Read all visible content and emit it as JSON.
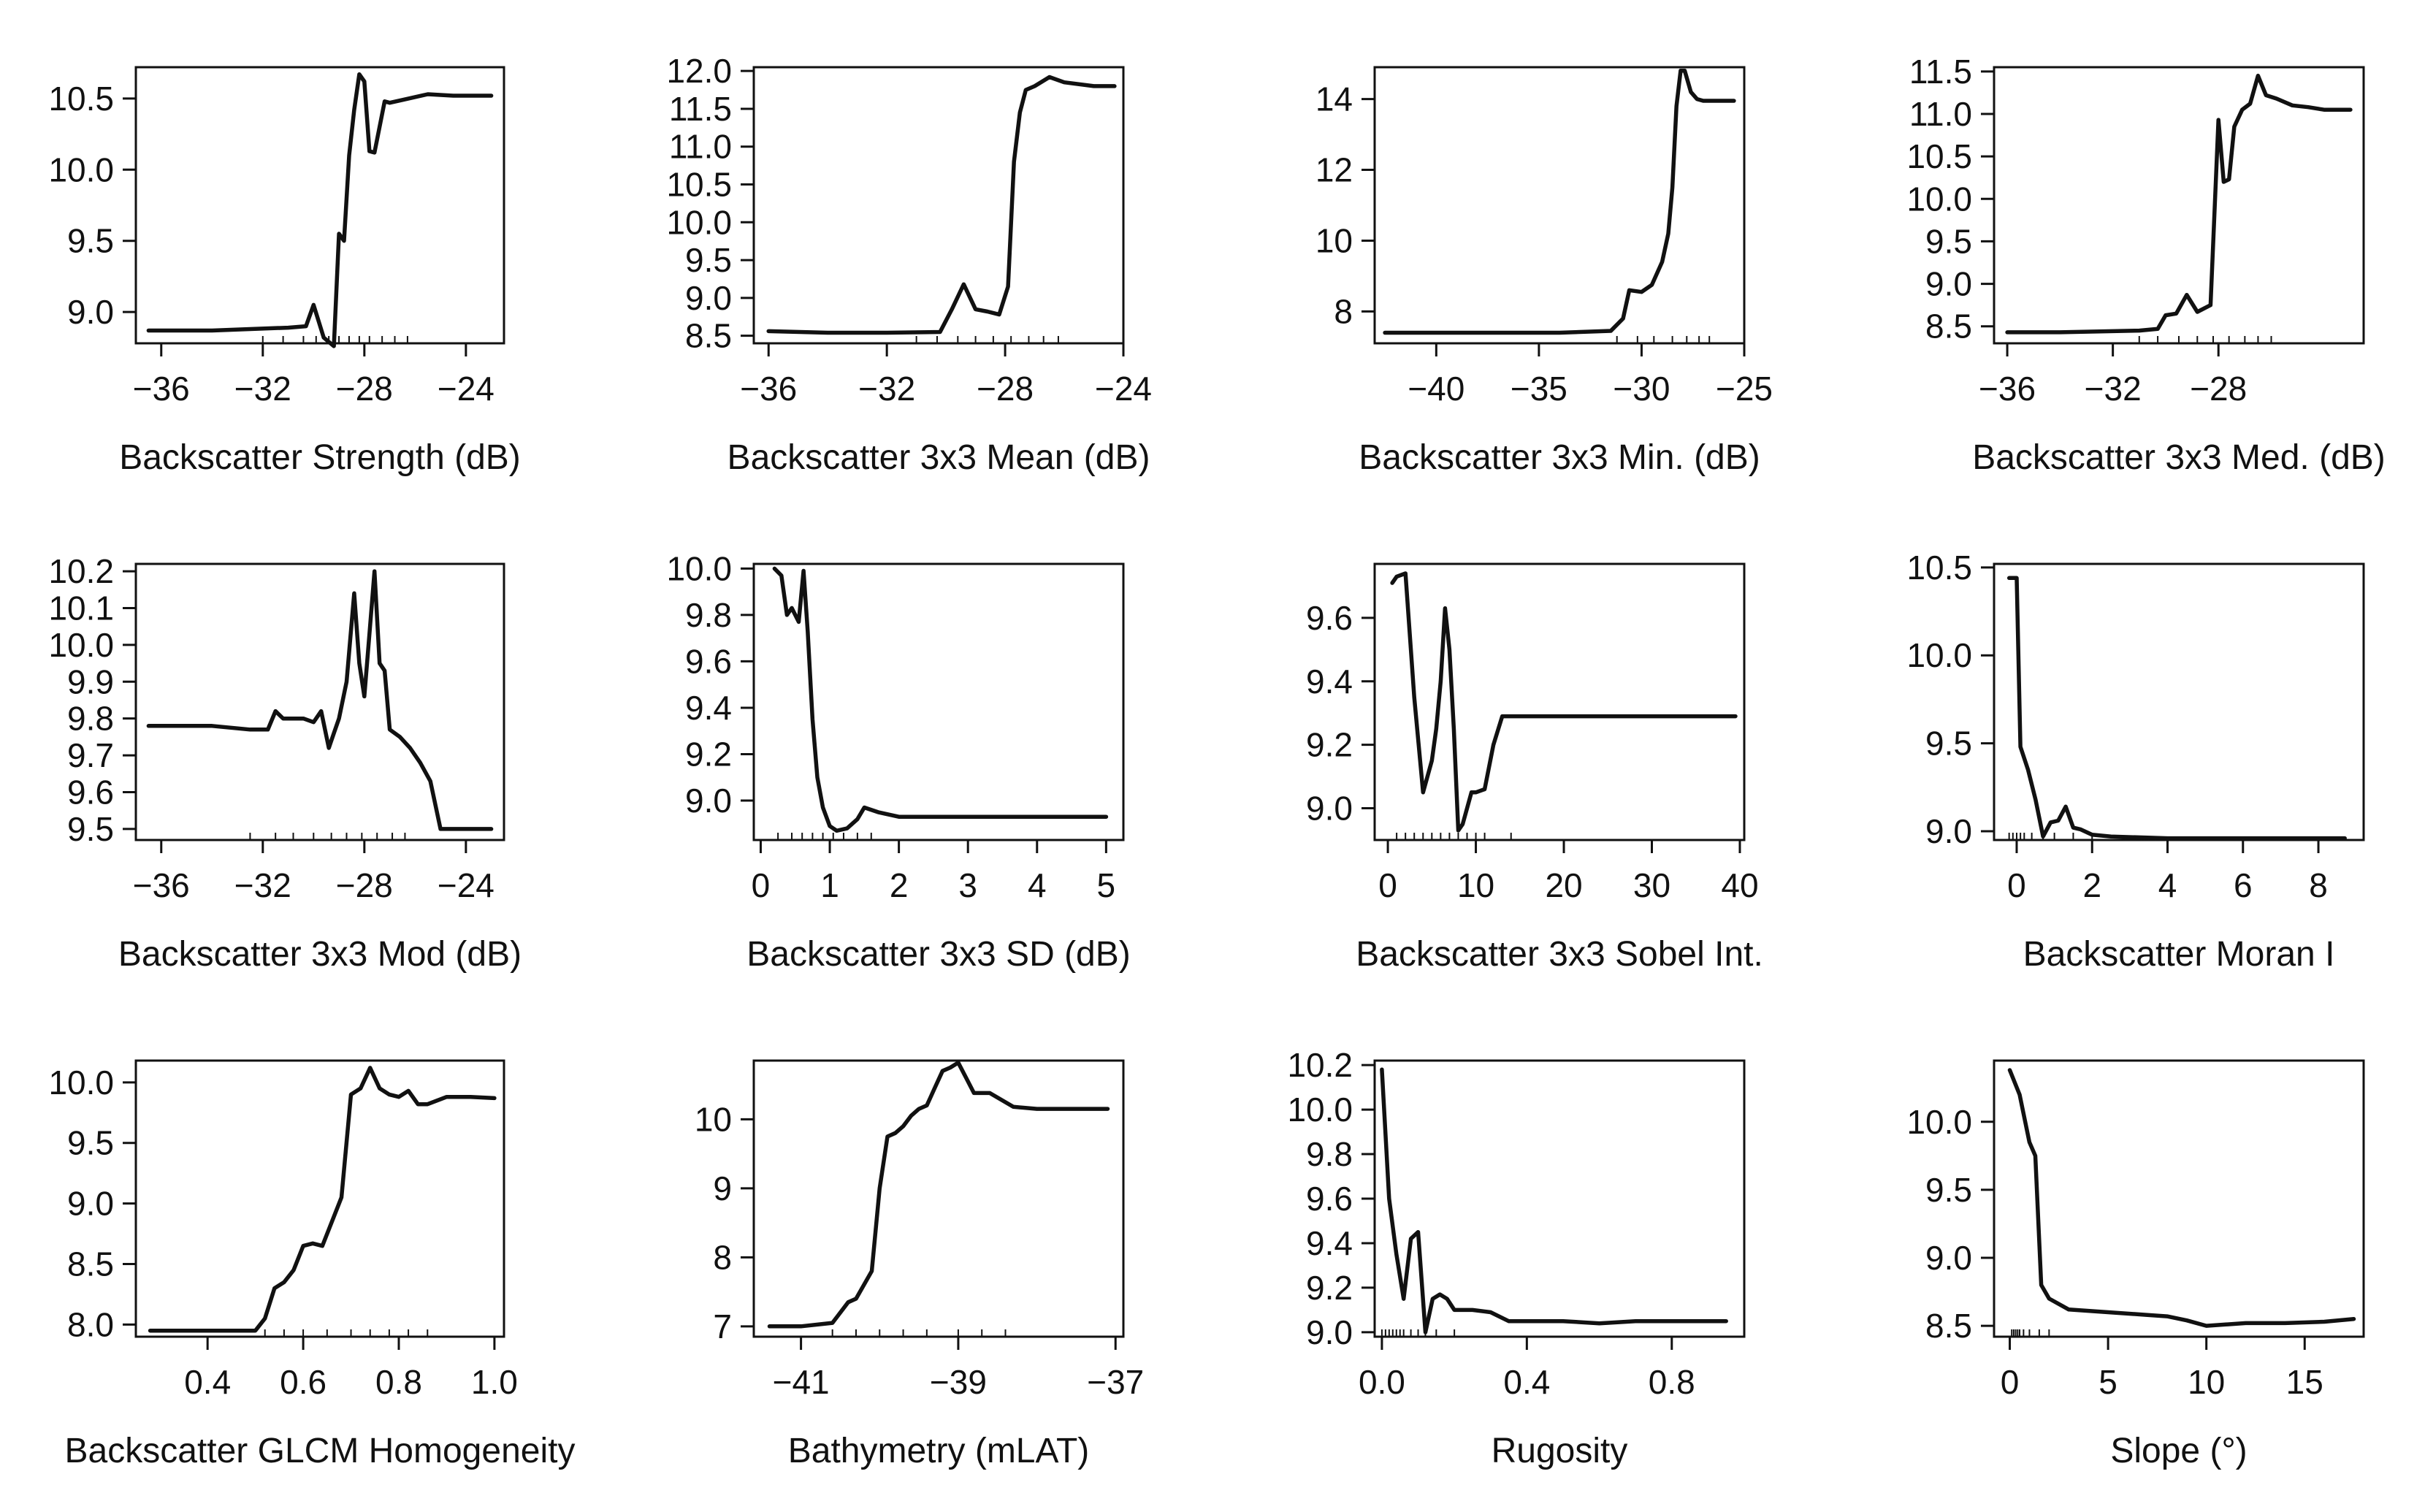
{
  "chart_data": [
    {
      "type": "line",
      "xlabel": "Backscatter Strength (dB)",
      "ylabel": "",
      "xlim": [
        -37,
        -22.5
      ],
      "ylim": [
        8.78,
        10.72
      ],
      "xticks": [
        -36,
        -32,
        -28,
        -24
      ],
      "yticks": [
        9.0,
        9.5,
        10.0,
        10.5
      ],
      "x": [
        -36.5,
        -34,
        -32.5,
        -31,
        -30.3,
        -30.0,
        -29.6,
        -29.2,
        -29.0,
        -28.8,
        -28.6,
        -28.4,
        -28.2,
        -28.0,
        -27.8,
        -27.6,
        -27.2,
        -27.0,
        -26.5,
        -25.5,
        -24.5,
        -23.0
      ],
      "y": [
        8.87,
        8.87,
        8.88,
        8.89,
        8.9,
        9.05,
        8.82,
        8.76,
        9.55,
        9.5,
        10.1,
        10.42,
        10.67,
        10.62,
        10.13,
        10.12,
        10.48,
        10.47,
        10.49,
        10.53,
        10.52,
        10.52
      ],
      "rug": [
        -32,
        -31.2,
        -30.4,
        -29.9,
        -29.4,
        -29,
        -28.6,
        -28.2,
        -27.8,
        -27.3,
        -26.8,
        -26.3
      ]
    },
    {
      "type": "line",
      "xlabel": "Backscatter 3x3 Mean (dB)",
      "ylabel": "",
      "xlim": [
        -36.5,
        -24
      ],
      "ylim": [
        8.4,
        12.05
      ],
      "xticks": [
        -36,
        -32,
        -28,
        -24
      ],
      "yticks": [
        8.5,
        9.0,
        9.5,
        10.0,
        10.5,
        11.0,
        11.5,
        12.0
      ],
      "x": [
        -36,
        -34,
        -32,
        -30.2,
        -29.8,
        -29.4,
        -29.0,
        -28.6,
        -28.2,
        -27.9,
        -27.7,
        -27.5,
        -27.3,
        -27.0,
        -26.5,
        -26.0,
        -25.0,
        -24.3
      ],
      "y": [
        8.56,
        8.54,
        8.54,
        8.55,
        8.85,
        9.18,
        8.85,
        8.82,
        8.78,
        9.15,
        10.8,
        11.45,
        11.75,
        11.8,
        11.92,
        11.85,
        11.8,
        11.8
      ],
      "rug": [
        -31,
        -30.3,
        -29.6,
        -29,
        -28.4,
        -27.8,
        -27.2,
        -26.7,
        -26.2
      ]
    },
    {
      "type": "line",
      "xlabel": "Backscatter 3x3 Min. (dB)",
      "ylabel": "",
      "xlim": [
        -43,
        -25
      ],
      "ylim": [
        7.1,
        14.9
      ],
      "xticks": [
        -40,
        -35,
        -30,
        -25
      ],
      "yticks": [
        8,
        10,
        12,
        14
      ],
      "x": [
        -42.5,
        -38,
        -34,
        -31.5,
        -30.9,
        -30.6,
        -30.0,
        -29.5,
        -29.0,
        -28.7,
        -28.5,
        -28.3,
        -28.1,
        -27.9,
        -27.6,
        -27.3,
        -27.0,
        -26.5,
        -25.5
      ],
      "y": [
        7.4,
        7.4,
        7.4,
        7.45,
        7.8,
        8.6,
        8.55,
        8.75,
        9.4,
        10.2,
        11.5,
        13.8,
        14.8,
        14.8,
        14.2,
        14.0,
        13.95,
        13.95,
        13.95
      ],
      "rug": [
        -31.2,
        -30.2,
        -29.4,
        -28.5,
        -27.8,
        -27.2,
        -26.7
      ]
    },
    {
      "type": "line",
      "xlabel": "Backscatter 3x3 Med. (dB)",
      "ylabel": "",
      "xlim": [
        -36.5,
        -22.5
      ],
      "ylim": [
        8.3,
        11.55
      ],
      "xticks": [
        -36,
        -32,
        -28
      ],
      "yticks": [
        8.5,
        9.0,
        9.5,
        10.0,
        10.5,
        11.0,
        11.5
      ],
      "x": [
        -36,
        -34,
        -32.5,
        -31,
        -30.3,
        -30.0,
        -29.6,
        -29.2,
        -28.8,
        -28.3,
        -28.0,
        -27.8,
        -27.6,
        -27.4,
        -27.1,
        -26.8,
        -26.5,
        -26.2,
        -25.8,
        -25.2,
        -24.6,
        -24.0,
        -23.5,
        -23.0
      ],
      "y": [
        8.43,
        8.43,
        8.44,
        8.45,
        8.47,
        8.63,
        8.65,
        8.87,
        8.67,
        8.75,
        10.93,
        10.2,
        10.23,
        10.85,
        11.05,
        11.12,
        11.45,
        11.22,
        11.18,
        11.1,
        11.08,
        11.05,
        11.05,
        11.05
      ],
      "rug": [
        -31,
        -30.3,
        -29.5,
        -28.8,
        -28.2,
        -27.6,
        -27,
        -26.5,
        -26
      ]
    },
    {
      "type": "line",
      "xlabel": "Backscatter 3x3 Mod (dB)",
      "ylabel": "",
      "xlim": [
        -37,
        -22.5
      ],
      "ylim": [
        9.47,
        10.22
      ],
      "xticks": [
        -36,
        -32,
        -28,
        -24
      ],
      "yticks": [
        9.5,
        9.6,
        9.7,
        9.8,
        9.9,
        10.0,
        10.1,
        10.2
      ],
      "x": [
        -36.5,
        -34,
        -32.5,
        -31.8,
        -31.5,
        -31.2,
        -30.8,
        -30.4,
        -30.0,
        -29.7,
        -29.4,
        -29.2,
        -29.0,
        -28.7,
        -28.4,
        -28.2,
        -28.0,
        -27.8,
        -27.6,
        -27.4,
        -27.2,
        -27.0,
        -26.6,
        -26.2,
        -25.8,
        -25.4,
        -25.0,
        -24.5,
        -23.0
      ],
      "y": [
        9.78,
        9.78,
        9.77,
        9.77,
        9.82,
        9.8,
        9.8,
        9.8,
        9.79,
        9.82,
        9.72,
        9.76,
        9.8,
        9.9,
        10.14,
        9.95,
        9.86,
        10.03,
        10.2,
        9.95,
        9.93,
        9.77,
        9.75,
        9.72,
        9.68,
        9.63,
        9.5,
        9.5,
        9.5
      ],
      "rug": [
        -32.5,
        -31.5,
        -30.8,
        -30,
        -29.3,
        -28.7,
        -28.1,
        -27.5,
        -26.9,
        -26.4
      ]
    },
    {
      "type": "line",
      "xlabel": "Backscatter 3x3 SD (dB)",
      "ylabel": "",
      "xlim": [
        -0.1,
        5.25
      ],
      "ylim": [
        8.83,
        10.02
      ],
      "xticks": [
        0,
        1,
        2,
        3,
        4,
        5
      ],
      "yticks": [
        9.0,
        9.2,
        9.4,
        9.6,
        9.8,
        10.0
      ],
      "x": [
        0.2,
        0.3,
        0.38,
        0.45,
        0.55,
        0.62,
        0.68,
        0.75,
        0.82,
        0.9,
        1.0,
        1.1,
        1.25,
        1.4,
        1.5,
        1.7,
        2.0,
        3.0,
        4.0,
        5.0
      ],
      "y": [
        10.0,
        9.97,
        9.8,
        9.83,
        9.77,
        9.99,
        9.73,
        9.35,
        9.1,
        8.97,
        8.89,
        8.87,
        8.88,
        8.92,
        8.97,
        8.95,
        8.93,
        8.93,
        8.93,
        8.93
      ],
      "rug": [
        0.25,
        0.45,
        0.6,
        0.75,
        0.9,
        1.05,
        1.2,
        1.4,
        1.6
      ]
    },
    {
      "type": "line",
      "xlabel": "Backscatter 3x3 Sobel Int.",
      "ylabel": "",
      "xlim": [
        -1.5,
        40.5
      ],
      "ylim": [
        8.9,
        9.77
      ],
      "xticks": [
        0,
        10,
        20,
        30,
        40
      ],
      "yticks": [
        9.0,
        9.2,
        9.4,
        9.6
      ],
      "x": [
        0.5,
        1.0,
        2.0,
        3.0,
        4.0,
        5.0,
        5.5,
        6.0,
        6.5,
        7.0,
        7.5,
        8.0,
        8.5,
        9.0,
        9.5,
        10.0,
        11.0,
        12.0,
        13.0,
        20.0,
        30.0,
        39.5
      ],
      "y": [
        9.71,
        9.73,
        9.74,
        9.35,
        9.05,
        9.15,
        9.25,
        9.4,
        9.63,
        9.5,
        9.25,
        8.93,
        8.95,
        9.0,
        9.05,
        9.05,
        9.06,
        9.2,
        9.29,
        9.29,
        9.29,
        9.29
      ],
      "rug": [
        1,
        2,
        3,
        4,
        5,
        6,
        7,
        8,
        9,
        10,
        11,
        14
      ]
    },
    {
      "type": "line",
      "xlabel": "Backscatter Moran I",
      "ylabel": "",
      "xlim": [
        -0.6,
        9.2
      ],
      "ylim": [
        8.95,
        10.52
      ],
      "xticks": [
        0,
        2,
        4,
        6,
        8
      ],
      "yticks": [
        9.0,
        9.5,
        10.0,
        10.5
      ],
      "x": [
        -0.2,
        0.0,
        0.1,
        0.3,
        0.5,
        0.7,
        0.9,
        1.1,
        1.3,
        1.5,
        1.7,
        2.0,
        2.5,
        4.0,
        6.0,
        8.0,
        8.7
      ],
      "y": [
        10.44,
        10.44,
        9.48,
        9.35,
        9.18,
        8.97,
        9.05,
        9.06,
        9.14,
        9.02,
        9.01,
        8.98,
        8.97,
        8.96,
        8.96,
        8.96,
        8.96
      ],
      "rug": [
        -0.2,
        -0.1,
        0.0,
        0.1,
        0.2,
        0.4,
        0.7,
        1.0,
        1.5,
        2.0
      ]
    },
    {
      "type": "line",
      "xlabel": "Backscatter GLCM Homogeneity",
      "ylabel": "",
      "xlim": [
        0.25,
        1.02
      ],
      "ylim": [
        7.9,
        10.18
      ],
      "xticks": [
        0.4,
        0.6,
        0.8,
        1.0
      ],
      "yticks": [
        8.0,
        8.5,
        9.0,
        9.5,
        10.0
      ],
      "x": [
        0.28,
        0.4,
        0.5,
        0.52,
        0.54,
        0.56,
        0.58,
        0.6,
        0.62,
        0.64,
        0.66,
        0.68,
        0.7,
        0.72,
        0.74,
        0.76,
        0.78,
        0.8,
        0.82,
        0.84,
        0.86,
        0.9,
        0.95,
        1.0
      ],
      "y": [
        7.95,
        7.95,
        7.95,
        8.05,
        8.3,
        8.35,
        8.45,
        8.65,
        8.67,
        8.65,
        8.85,
        9.05,
        9.9,
        9.95,
        10.12,
        9.95,
        9.9,
        9.88,
        9.93,
        9.82,
        9.82,
        9.88,
        9.88,
        9.87
      ],
      "rug": [
        0.52,
        0.56,
        0.6,
        0.65,
        0.7,
        0.74,
        0.78,
        0.82,
        0.86
      ]
    },
    {
      "type": "line",
      "xlabel": "Bathymetry (mLAT)",
      "ylabel": "",
      "xlim": [
        -41.6,
        -36.9
      ],
      "ylim": [
        6.85,
        10.85
      ],
      "xticks": [
        -41,
        -39,
        -37
      ],
      "yticks": [
        7,
        8,
        9,
        10
      ],
      "x": [
        -41.4,
        -41.0,
        -40.6,
        -40.4,
        -40.3,
        -40.1,
        -40.0,
        -39.9,
        -39.8,
        -39.7,
        -39.6,
        -39.5,
        -39.4,
        -39.3,
        -39.2,
        -39.1,
        -39.0,
        -38.9,
        -38.8,
        -38.6,
        -38.3,
        -38.0,
        -37.1
      ],
      "y": [
        7.0,
        7.0,
        7.05,
        7.35,
        7.4,
        7.8,
        9.0,
        9.75,
        9.8,
        9.9,
        10.05,
        10.15,
        10.2,
        10.45,
        10.7,
        10.75,
        10.82,
        10.6,
        10.38,
        10.38,
        10.18,
        10.15,
        10.15
      ],
      "rug": [
        -40.6,
        -40.3,
        -40.0,
        -39.7,
        -39.4,
        -39.0,
        -38.7,
        -38.4
      ]
    },
    {
      "type": "line",
      "xlabel": "Rugosity",
      "ylabel": "",
      "xlim": [
        -0.02,
        1.0
      ],
      "ylim": [
        8.98,
        10.22
      ],
      "xticks": [
        0.0,
        0.4,
        0.8
      ],
      "yticks": [
        9.0,
        9.2,
        9.4,
        9.6,
        9.8,
        10.0,
        10.2
      ],
      "x": [
        0.0,
        0.02,
        0.04,
        0.06,
        0.08,
        0.1,
        0.12,
        0.14,
        0.16,
        0.18,
        0.2,
        0.25,
        0.3,
        0.35,
        0.4,
        0.5,
        0.6,
        0.7,
        0.8,
        0.95
      ],
      "y": [
        10.18,
        9.6,
        9.35,
        9.15,
        9.42,
        9.45,
        9.0,
        9.15,
        9.17,
        9.15,
        9.1,
        9.1,
        9.09,
        9.05,
        9.05,
        9.05,
        9.04,
        9.05,
        9.05,
        9.05
      ],
      "rug": [
        0.0,
        0.01,
        0.02,
        0.03,
        0.04,
        0.05,
        0.06,
        0.08,
        0.1,
        0.12,
        0.15,
        0.2
      ]
    },
    {
      "type": "line",
      "xlabel": "Slope (°)",
      "ylabel": "",
      "xlim": [
        -0.8,
        18
      ],
      "ylim": [
        8.42,
        10.45
      ],
      "xticks": [
        0,
        5,
        10,
        15
      ],
      "yticks": [
        8.5,
        9.0,
        9.5,
        10.0
      ],
      "x": [
        0.0,
        0.5,
        1.0,
        1.3,
        1.6,
        2.0,
        3.0,
        5.0,
        7.0,
        8.0,
        9.0,
        10.0,
        12.0,
        14.0,
        16.0,
        17.5
      ],
      "y": [
        10.38,
        10.2,
        9.85,
        9.75,
        8.8,
        8.7,
        8.62,
        8.6,
        8.58,
        8.57,
        8.54,
        8.5,
        8.52,
        8.52,
        8.53,
        8.55
      ],
      "rug": [
        0.1,
        0.2,
        0.3,
        0.4,
        0.5,
        0.7,
        1.0,
        1.5,
        2.0
      ]
    }
  ]
}
